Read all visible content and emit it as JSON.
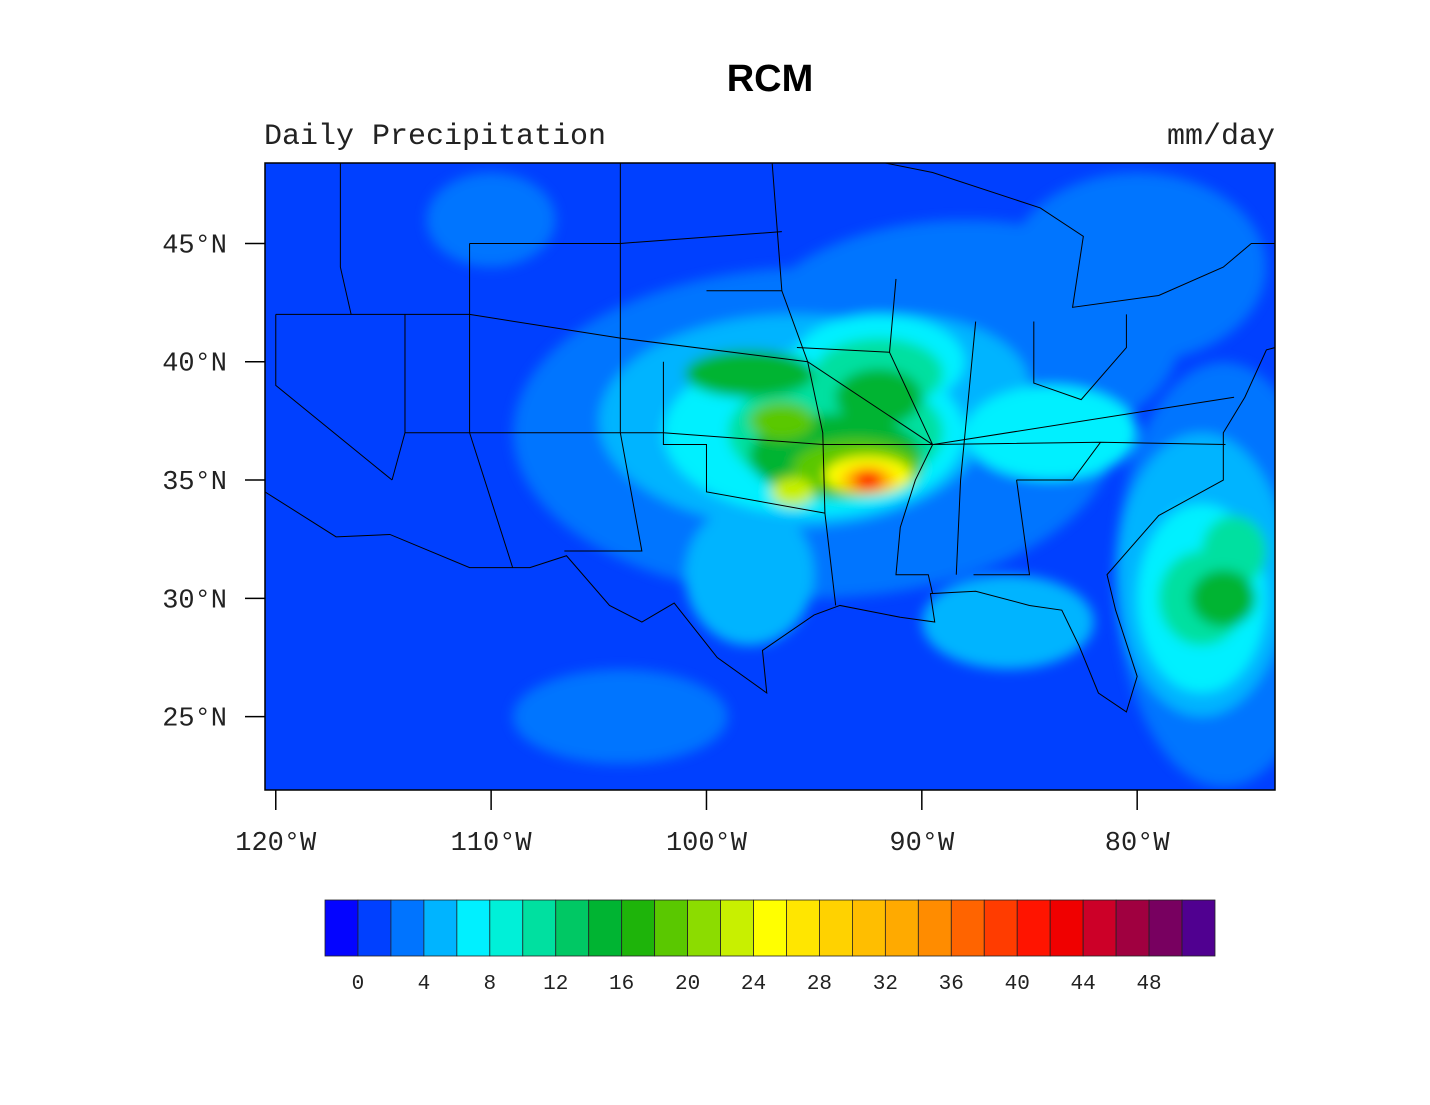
{
  "title": "RCM",
  "left_subtitle": "Daily Precipitation",
  "right_subtitle": "mm/day",
  "map": {
    "projection": "cylindrical-equidistant",
    "lon_range": [
      -120.5,
      -73.6
    ],
    "lat_range": [
      21.9,
      48.4
    ],
    "lon_ticks": [
      {
        "value": -120,
        "label": "120°W"
      },
      {
        "value": -110,
        "label": "110°W"
      },
      {
        "value": -100,
        "label": "100°W"
      },
      {
        "value": -90,
        "label": "90°W"
      },
      {
        "value": -80,
        "label": "80°W"
      }
    ],
    "lat_ticks": [
      {
        "value": 45,
        "label": "45°N"
      },
      {
        "value": 40,
        "label": "40°N"
      },
      {
        "value": 35,
        "label": "35°N"
      },
      {
        "value": 30,
        "label": "30°N"
      },
      {
        "value": 25,
        "label": "25°N"
      }
    ],
    "background_color": "#0040ff",
    "boundaries": "coastlines and US state lines"
  },
  "colorbar": {
    "levels": [
      0,
      2,
      4,
      6,
      8,
      10,
      12,
      14,
      16,
      18,
      20,
      22,
      24,
      26,
      28,
      30,
      32,
      34,
      36,
      38,
      40,
      42,
      44,
      46,
      48,
      50
    ],
    "labels": [
      "0",
      "4",
      "8",
      "12",
      "16",
      "20",
      "24",
      "28",
      "32",
      "36",
      "40",
      "44",
      "48"
    ],
    "colors": [
      "#0404ff",
      "#0040ff",
      "#0074ff",
      "#00b4ff",
      "#00f0ff",
      "#00f0d8",
      "#00e0a0",
      "#00c864",
      "#00b432",
      "#1eb40a",
      "#5ac800",
      "#8cdc00",
      "#c8f000",
      "#ffff00",
      "#ffe600",
      "#ffd200",
      "#ffbe00",
      "#ffaa00",
      "#ff8c00",
      "#ff6400",
      "#ff3c00",
      "#ff1400",
      "#f00000",
      "#cc0028",
      "#a00040",
      "#780060",
      "#500090"
    ]
  }
}
